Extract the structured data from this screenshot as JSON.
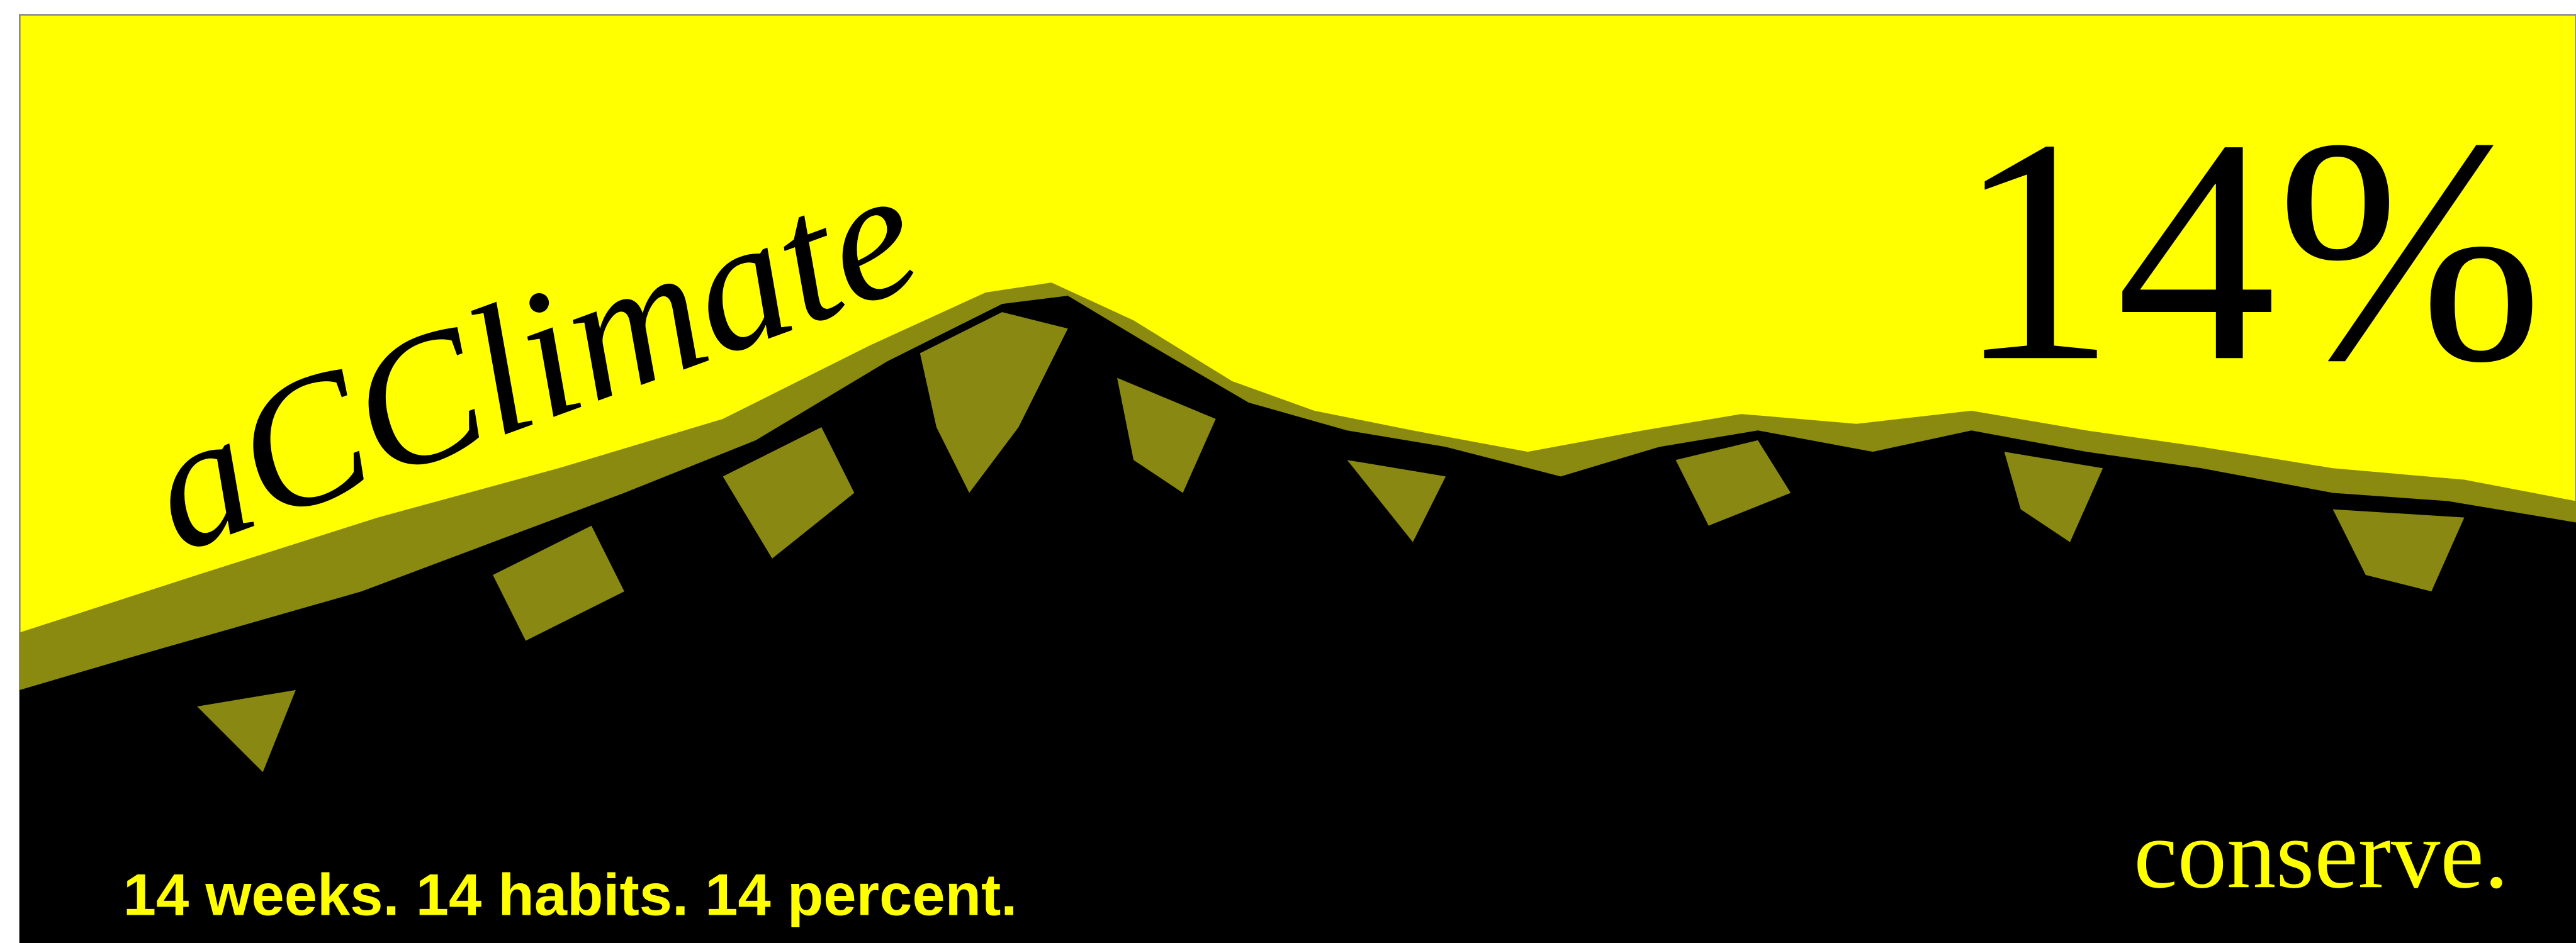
{
  "banner": {
    "title": "aCClimate",
    "headline": "14%",
    "call_to_action": "conserve.",
    "tagline": "14 weeks. 14 habits. 14 percent."
  }
}
